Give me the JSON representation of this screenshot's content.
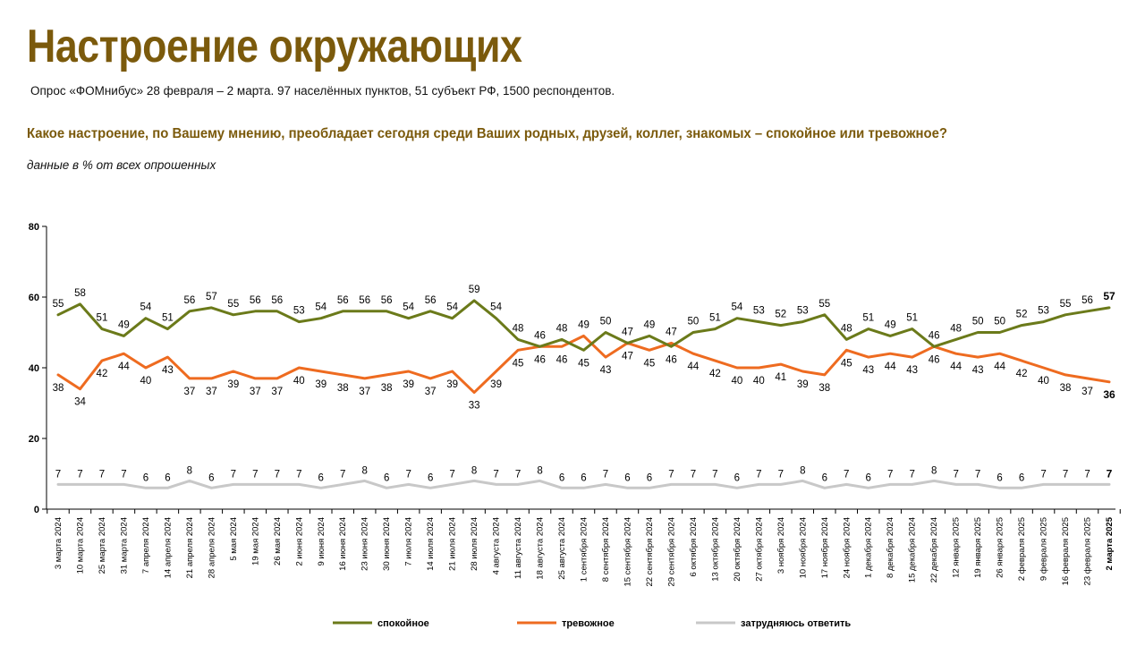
{
  "header": {
    "title": "Настроение окружающих",
    "subtitle": "Опрос «ФОМнибус» 28 февраля – 2 марта. 97 населённых пунктов, 51 субъект РФ, 1500 респондентов.",
    "question": "Какое настроение, по Вашему мнению, преобладает сегодня среди Ваших родных, друзей, коллег, знакомых – спокойное или тревожное?",
    "note": "данные в % от всех опрошенных"
  },
  "colors": {
    "calm": "#6b7a1a",
    "anxious": "#ee6b20",
    "hard_to_say": "#c8c8c8",
    "title": "#7b5a0c"
  },
  "chart_data": {
    "type": "line",
    "ylim": [
      0,
      80
    ],
    "yticks": [
      0,
      20,
      40,
      60,
      80
    ],
    "grid": false,
    "legend_position": "bottom",
    "categories": [
      "3 марта 2024",
      "10 марта 2024",
      "25 марта 2024",
      "31 марта 2024",
      "7 апреля 2024",
      "14 апреля 2024",
      "21 апреля 2024",
      "28 апреля 2024",
      "5 мая 2024",
      "19 мая 2024",
      "26 мая 2024",
      "2 июня 2024",
      "9 июня 2024",
      "16 июня 2024",
      "23 июня 2024",
      "30 июня 2024",
      "7 июля 2024",
      "14 июля 2024",
      "21 июля 2024",
      "28 июля 2024",
      "4 августа 2024",
      "11 августа 2024",
      "18 августа 2024",
      "25 августа 2024",
      "1 сентября 2024",
      "8 сентября 2024",
      "15 сентября 2024",
      "22 сентября 2024",
      "29 сентября 2024",
      "6 октября 2024",
      "13 октября 2024",
      "20 октября 2024",
      "27 октября 2024",
      "3 ноября 2024",
      "10 ноября 2024",
      "17 ноября 2024",
      "24 ноября 2024",
      "1 декабря 2024",
      "8 декабря 2024",
      "15 декабря 2024",
      "22 декабря 2024",
      "12 января 2025",
      "19 января 2025",
      "26 января 2025",
      "2 февраля 2025",
      "9 февраля 2025",
      "16 февраля 2025",
      "23 февраля 2025",
      "2 марта 2025"
    ],
    "series": [
      {
        "name": "спокойное",
        "key": "calm",
        "values": [
          55,
          58,
          51,
          49,
          54,
          51,
          56,
          57,
          55,
          56,
          56,
          53,
          54,
          56,
          56,
          56,
          54,
          56,
          54,
          59,
          54,
          48,
          46,
          48,
          45,
          50,
          47,
          49,
          46,
          50,
          51,
          54,
          53,
          52,
          53,
          55,
          48,
          51,
          49,
          51,
          46,
          48,
          50,
          50,
          52,
          53,
          55,
          56,
          57
        ]
      },
      {
        "name": "тревожное",
        "key": "anxious",
        "values": [
          38,
          34,
          42,
          44,
          40,
          43,
          37,
          37,
          39,
          37,
          37,
          40,
          39,
          38,
          37,
          38,
          39,
          37,
          39,
          33,
          39,
          45,
          46,
          46,
          49,
          43,
          47,
          45,
          47,
          44,
          42,
          40,
          40,
          41,
          39,
          38,
          45,
          43,
          44,
          43,
          46,
          44,
          43,
          44,
          42,
          40,
          38,
          37,
          36
        ]
      },
      {
        "name": "затрудняюсь ответить",
        "key": "hard_to_say",
        "values": [
          7,
          7,
          7,
          7,
          6,
          6,
          8,
          6,
          7,
          7,
          7,
          7,
          6,
          7,
          8,
          6,
          7,
          6,
          7,
          8,
          7,
          7,
          8,
          6,
          6,
          7,
          6,
          6,
          7,
          7,
          7,
          6,
          7,
          7,
          8,
          6,
          7,
          6,
          7,
          7,
          8,
          7,
          7,
          6,
          6,
          7,
          7,
          7,
          7
        ]
      }
    ]
  }
}
